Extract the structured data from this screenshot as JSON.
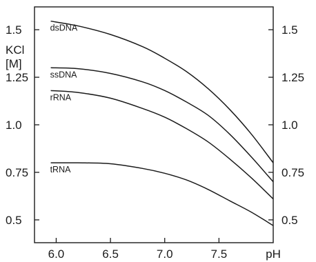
{
  "chart_data": {
    "type": "line",
    "title": "",
    "xlabel": "pH",
    "ylabel_lines": [
      "KCl",
      "[M]"
    ],
    "xlim": [
      5.8,
      8.0
    ],
    "ylim": [
      0.38,
      1.62
    ],
    "x_ticks": [
      6.0,
      6.5,
      7.0,
      7.5
    ],
    "x_tick_labels": [
      "6.0",
      "6.5",
      "7.0",
      "7.5"
    ],
    "y_ticks": [
      0.5,
      0.75,
      1.0,
      1.25,
      1.5
    ],
    "y_tick_labels_left": [
      "0.5",
      "0.75",
      "1.0",
      "1.25",
      "1.5"
    ],
    "y_tick_labels_right": [
      "0.5",
      "0.75",
      "1.0",
      "1.25",
      "1.5"
    ],
    "grid": false,
    "series": [
      {
        "name": "dsDNA",
        "x": [
          5.95,
          6.2,
          6.5,
          6.8,
          7.0,
          7.2,
          7.4,
          7.6,
          7.8,
          8.0
        ],
        "y": [
          1.545,
          1.52,
          1.475,
          1.41,
          1.35,
          1.28,
          1.19,
          1.08,
          0.95,
          0.8
        ]
      },
      {
        "name": "ssDNA",
        "x": [
          5.95,
          6.2,
          6.5,
          6.8,
          7.0,
          7.2,
          7.4,
          7.6,
          7.8,
          8.0
        ],
        "y": [
          1.3,
          1.295,
          1.27,
          1.225,
          1.18,
          1.12,
          1.05,
          0.95,
          0.83,
          0.7
        ]
      },
      {
        "name": "rRNA",
        "x": [
          5.95,
          6.2,
          6.5,
          6.8,
          7.0,
          7.2,
          7.4,
          7.6,
          7.8,
          8.0
        ],
        "y": [
          1.18,
          1.17,
          1.14,
          1.085,
          1.04,
          0.98,
          0.91,
          0.82,
          0.72,
          0.61
        ]
      },
      {
        "name": "tRNA",
        "x": [
          5.95,
          6.2,
          6.5,
          6.8,
          7.0,
          7.2,
          7.4,
          7.6,
          7.8,
          8.0
        ],
        "y": [
          0.8,
          0.8,
          0.795,
          0.77,
          0.745,
          0.71,
          0.66,
          0.6,
          0.54,
          0.47
        ]
      }
    ]
  }
}
